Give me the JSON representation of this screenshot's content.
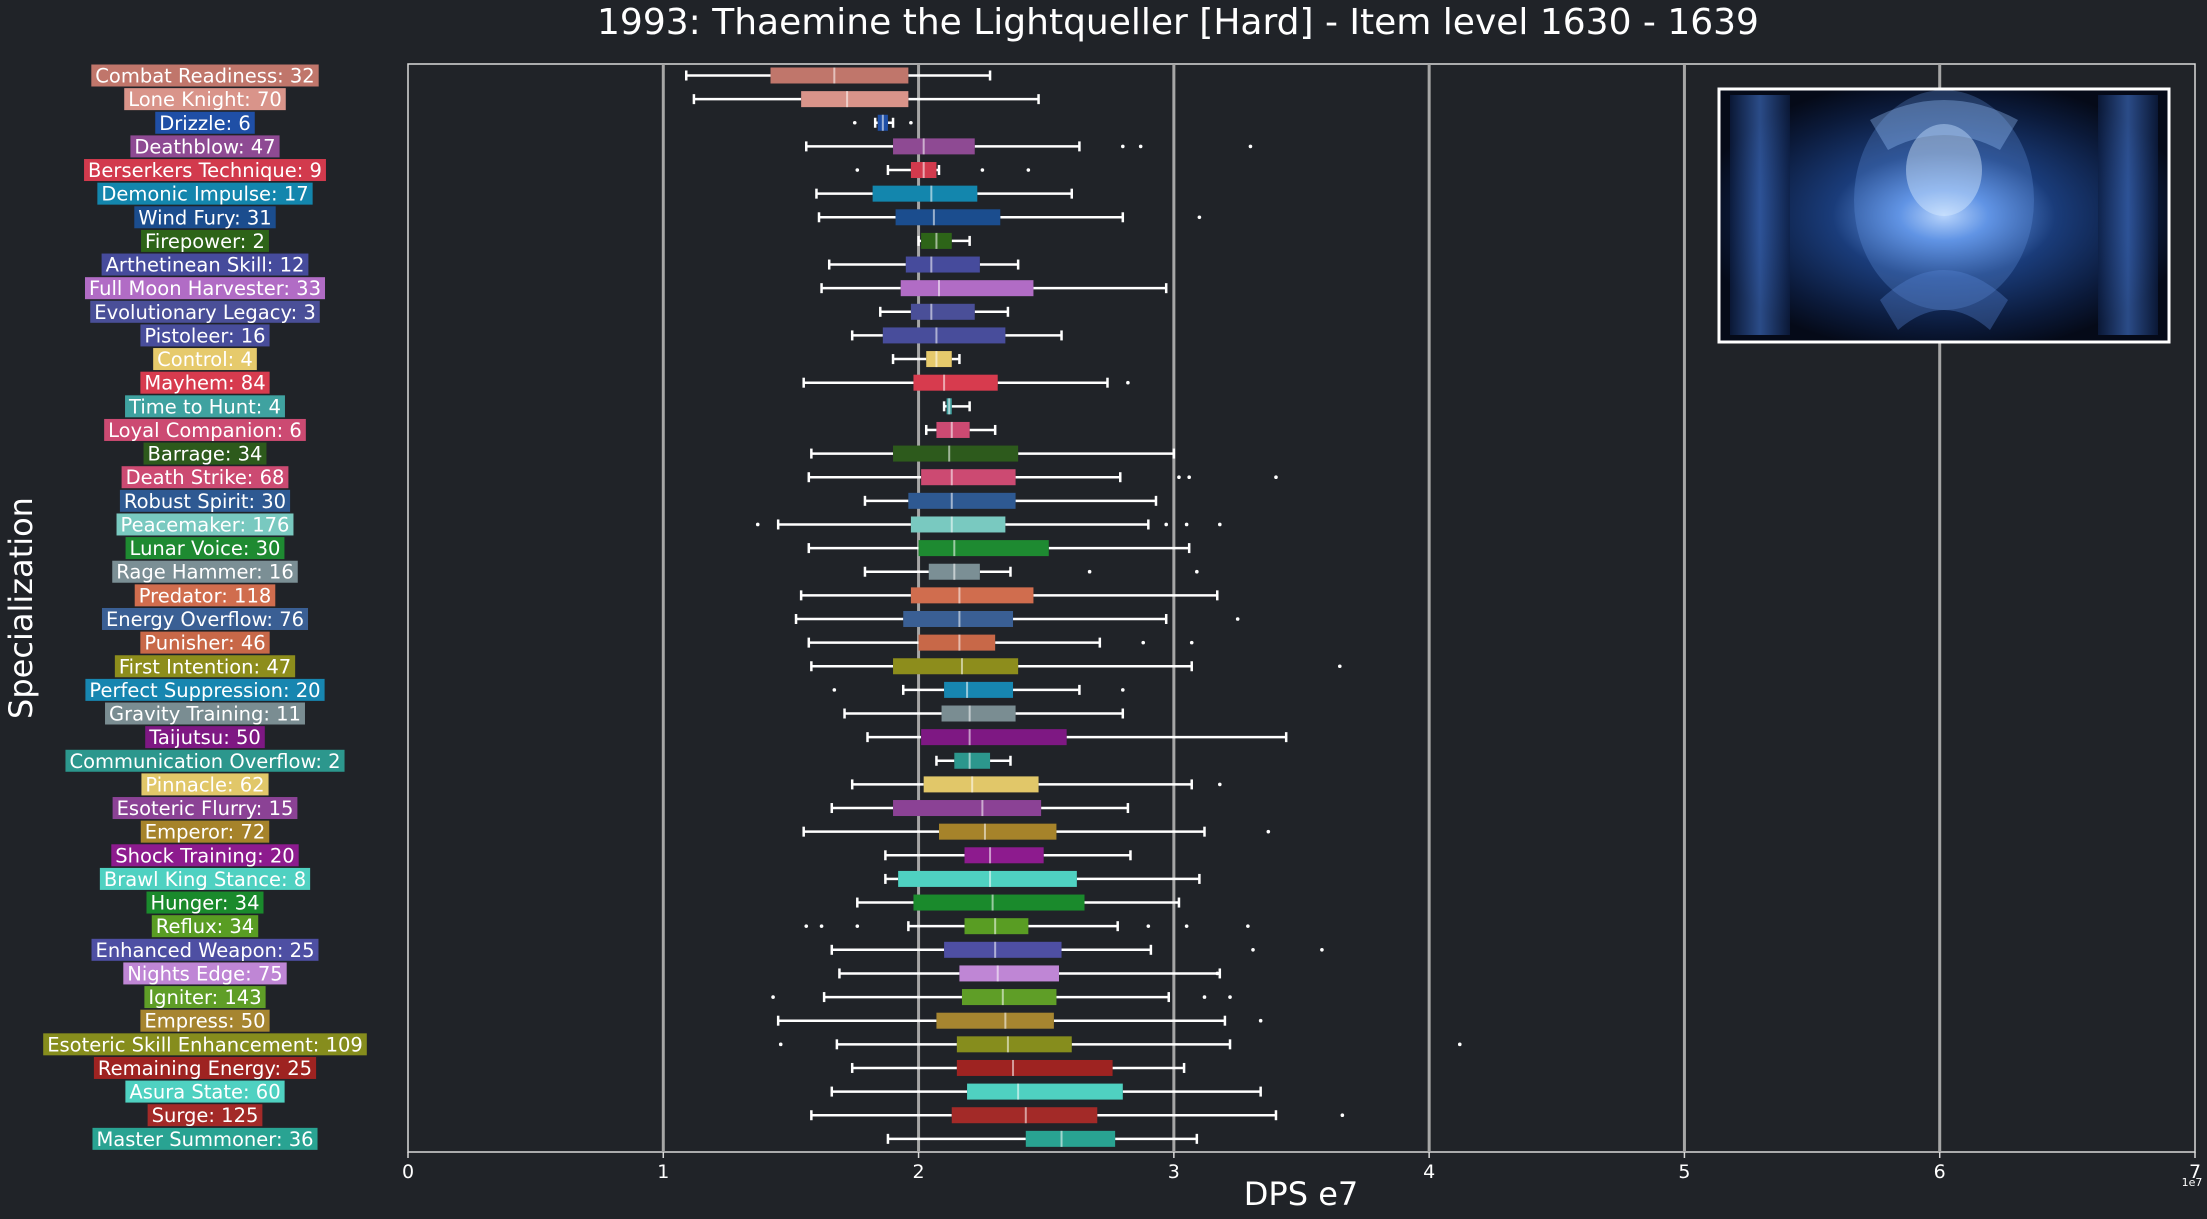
{
  "chart_data": {
    "type": "box",
    "title": "1993: Thaemine the Lightqueller [Hard] - Item level 1630 - 1639",
    "xlabel": "DPS e7",
    "ylabel": "Specialization",
    "x_exponent_label": "1e7",
    "xlim": [
      0,
      7
    ],
    "x_ticks": [
      0,
      1,
      2,
      3,
      4,
      5,
      6,
      7
    ],
    "x_tick_labels": [
      "0",
      "1",
      "2",
      "3",
      "4",
      "5",
      "6",
      "7"
    ],
    "grid": "vertical gridlines at each integer",
    "has_boss_image": true,
    "categories": [
      {
        "label": "Combat Readiness: 32",
        "color": "#c0766b",
        "box": [
          1.09,
          1.42,
          1.67,
          1.96,
          2.28
        ],
        "outliers": []
      },
      {
        "label": "Lone Knight: 70",
        "color": "#d9948a",
        "box": [
          1.12,
          1.54,
          1.72,
          1.96,
          2.47
        ],
        "outliers": []
      },
      {
        "label": "Drizzle: 6",
        "color": "#1f4fa6",
        "box": [
          1.83,
          1.84,
          1.86,
          1.88,
          1.9
        ],
        "outliers": [
          1.75,
          1.97
        ]
      },
      {
        "label": "Deathblow: 47",
        "color": "#8e4a93",
        "box": [
          1.56,
          1.9,
          2.02,
          2.22,
          2.63
        ],
        "outliers": [
          2.8,
          2.87,
          3.3
        ]
      },
      {
        "label": "Berserkers Technique: 9",
        "color": "#d23a4d",
        "box": [
          1.88,
          1.97,
          2.02,
          2.07,
          2.08
        ],
        "outliers": [
          1.76,
          2.25,
          2.43
        ]
      },
      {
        "label": "Demonic Impulse: 17",
        "color": "#1386ad",
        "box": [
          1.6,
          1.82,
          2.05,
          2.23,
          2.6
        ],
        "outliers": []
      },
      {
        "label": "Wind Fury: 31",
        "color": "#1b4d8e",
        "box": [
          1.61,
          1.91,
          2.06,
          2.32,
          2.8
        ],
        "outliers": [
          3.1
        ]
      },
      {
        "label": "Firepower: 2",
        "color": "#2d6418",
        "box": [
          2.0,
          2.01,
          2.07,
          2.13,
          2.2
        ],
        "outliers": []
      },
      {
        "label": "Arthetinean Skill: 12",
        "color": "#464b9c",
        "box": [
          1.65,
          1.95,
          2.05,
          2.24,
          2.39
        ],
        "outliers": []
      },
      {
        "label": "Full Moon Harvester: 33",
        "color": "#b16cc5",
        "box": [
          1.62,
          1.93,
          2.08,
          2.45,
          2.97
        ],
        "outliers": []
      },
      {
        "label": "Evolutionary Legacy: 3",
        "color": "#4a4f98",
        "box": [
          1.85,
          1.97,
          2.05,
          2.22,
          2.35
        ],
        "outliers": []
      },
      {
        "label": "Pistoleer: 16",
        "color": "#484d9b",
        "box": [
          1.74,
          1.86,
          2.07,
          2.34,
          2.56
        ],
        "outliers": []
      },
      {
        "label": "Control: 4",
        "color": "#e6ca6c",
        "box": [
          1.9,
          2.03,
          2.07,
          2.13,
          2.16
        ],
        "outliers": []
      },
      {
        "label": "Mayhem: 84",
        "color": "#d73b4e",
        "box": [
          1.55,
          1.98,
          2.1,
          2.31,
          2.74
        ],
        "outliers": [
          2.82
        ]
      },
      {
        "label": "Time to Hunt: 4",
        "color": "#3fa2a0",
        "box": [
          2.1,
          2.11,
          2.12,
          2.13,
          2.2
        ],
        "outliers": []
      },
      {
        "label": "Loyal Companion: 6",
        "color": "#cc4a72",
        "box": [
          2.03,
          2.07,
          2.13,
          2.2,
          2.3
        ],
        "outliers": []
      },
      {
        "label": "Barrage: 34",
        "color": "#2d5a1c",
        "box": [
          1.58,
          1.9,
          2.12,
          2.39,
          3.0
        ],
        "outliers": []
      },
      {
        "label": "Death Strike: 68",
        "color": "#cc4a72",
        "box": [
          1.57,
          2.01,
          2.13,
          2.38,
          2.79
        ],
        "outliers": [
          3.02,
          3.06,
          3.4
        ]
      },
      {
        "label": "Robust Spirit: 30",
        "color": "#2e5992",
        "box": [
          1.79,
          1.96,
          2.13,
          2.38,
          2.93
        ],
        "outliers": []
      },
      {
        "label": "Peacemaker: 176",
        "color": "#79c9c0",
        "box": [
          1.45,
          1.97,
          2.13,
          2.34,
          2.9
        ],
        "outliers": [
          1.37,
          2.97,
          3.05,
          3.18
        ]
      },
      {
        "label": "Lunar Voice: 30",
        "color": "#1e8a31",
        "box": [
          1.57,
          2.0,
          2.14,
          2.51,
          3.06
        ],
        "outliers": []
      },
      {
        "label": "Rage Hammer: 16",
        "color": "#7b8f95",
        "box": [
          1.79,
          2.04,
          2.14,
          2.24,
          2.36
        ],
        "outliers": [
          2.67,
          3.09
        ]
      },
      {
        "label": "Predator: 118",
        "color": "#d06d4e",
        "box": [
          1.54,
          1.97,
          2.16,
          2.45,
          3.17
        ],
        "outliers": []
      },
      {
        "label": "Energy Overflow: 76",
        "color": "#3a5f94",
        "box": [
          1.52,
          1.94,
          2.16,
          2.37,
          2.97
        ],
        "outliers": [
          3.25
        ]
      },
      {
        "label": "Punisher: 46",
        "color": "#c86848",
        "box": [
          1.57,
          2.0,
          2.16,
          2.3,
          2.71
        ],
        "outliers": [
          2.88,
          3.07
        ]
      },
      {
        "label": "First Intention: 47",
        "color": "#8d8d1c",
        "box": [
          1.58,
          1.9,
          2.17,
          2.39,
          3.07
        ],
        "outliers": [
          3.65
        ]
      },
      {
        "label": "Perfect Suppression: 20",
        "color": "#1786b0",
        "box": [
          1.94,
          2.1,
          2.19,
          2.37,
          2.63
        ],
        "outliers": [
          1.67,
          2.8
        ]
      },
      {
        "label": "Gravity Training: 11",
        "color": "#7a8d92",
        "box": [
          1.71,
          2.09,
          2.2,
          2.38,
          2.8
        ],
        "outliers": []
      },
      {
        "label": "Taijutsu: 50",
        "color": "#7e1883",
        "box": [
          1.8,
          2.01,
          2.2,
          2.58,
          3.44
        ],
        "outliers": []
      },
      {
        "label": "Communication Overflow: 2",
        "color": "#2c978d",
        "box": [
          2.07,
          2.14,
          2.2,
          2.28,
          2.36
        ],
        "outliers": []
      },
      {
        "label": "Pinnacle: 62",
        "color": "#e1c769",
        "box": [
          1.74,
          2.02,
          2.21,
          2.47,
          3.07
        ],
        "outliers": [
          3.18
        ]
      },
      {
        "label": "Esoteric Flurry: 15",
        "color": "#8b4295",
        "box": [
          1.66,
          1.9,
          2.25,
          2.48,
          2.82
        ],
        "outliers": []
      },
      {
        "label": "Emperor: 72",
        "color": "#a6832a",
        "box": [
          1.55,
          2.08,
          2.26,
          2.54,
          3.12
        ],
        "outliers": [
          3.37
        ]
      },
      {
        "label": "Shock Training: 20",
        "color": "#8d1b8e",
        "box": [
          1.87,
          2.18,
          2.28,
          2.49,
          2.83
        ],
        "outliers": []
      },
      {
        "label": "Brawl King Stance: 8",
        "color": "#4fd1c1",
        "box": [
          1.87,
          1.92,
          2.28,
          2.62,
          3.1
        ],
        "outliers": []
      },
      {
        "label": "Hunger: 34",
        "color": "#1a8a2c",
        "box": [
          1.76,
          1.98,
          2.29,
          2.65,
          3.02
        ],
        "outliers": []
      },
      {
        "label": "Reflux: 34",
        "color": "#599d23",
        "box": [
          1.96,
          2.18,
          2.3,
          2.43,
          2.78
        ],
        "outliers": [
          1.56,
          1.62,
          1.76,
          2.9,
          3.05,
          3.29
        ]
      },
      {
        "label": "Enhanced Weapon: 25",
        "color": "#4e4fa3",
        "box": [
          1.66,
          2.1,
          2.3,
          2.56,
          2.91
        ],
        "outliers": [
          3.31,
          3.58
        ]
      },
      {
        "label": "Nights Edge: 75",
        "color": "#bf86d5",
        "box": [
          1.69,
          2.16,
          2.31,
          2.55,
          3.18
        ],
        "outliers": [
          3.17
        ]
      },
      {
        "label": "Igniter: 143",
        "color": "#5f9e27",
        "box": [
          1.63,
          2.17,
          2.33,
          2.54,
          2.98
        ],
        "outliers": [
          1.43,
          3.12,
          3.22
        ]
      },
      {
        "label": "Empress: 50",
        "color": "#a68530",
        "box": [
          1.45,
          2.07,
          2.34,
          2.53,
          3.2
        ],
        "outliers": [
          3.34
        ]
      },
      {
        "label": "Esoteric Skill Enhancement: 109",
        "color": "#868d1d",
        "box": [
          1.68,
          2.15,
          2.35,
          2.6,
          3.22
        ],
        "outliers": [
          1.46,
          4.12
        ]
      },
      {
        "label": "Remaining Energy: 25",
        "color": "#9e2321",
        "box": [
          1.74,
          2.15,
          2.37,
          2.76,
          3.04
        ],
        "outliers": []
      },
      {
        "label": "Asura State: 60",
        "color": "#4fd1c1",
        "box": [
          1.66,
          2.19,
          2.39,
          2.8,
          3.34
        ],
        "outliers": []
      },
      {
        "label": "Surge: 125",
        "color": "#a32a28",
        "box": [
          1.58,
          2.13,
          2.42,
          2.7,
          3.4
        ],
        "outliers": [
          3.66
        ]
      },
      {
        "label": "Master Summoner: 36",
        "color": "#29a392",
        "box": [
          1.88,
          2.42,
          2.56,
          2.77,
          3.09
        ],
        "outliers": []
      }
    ]
  }
}
